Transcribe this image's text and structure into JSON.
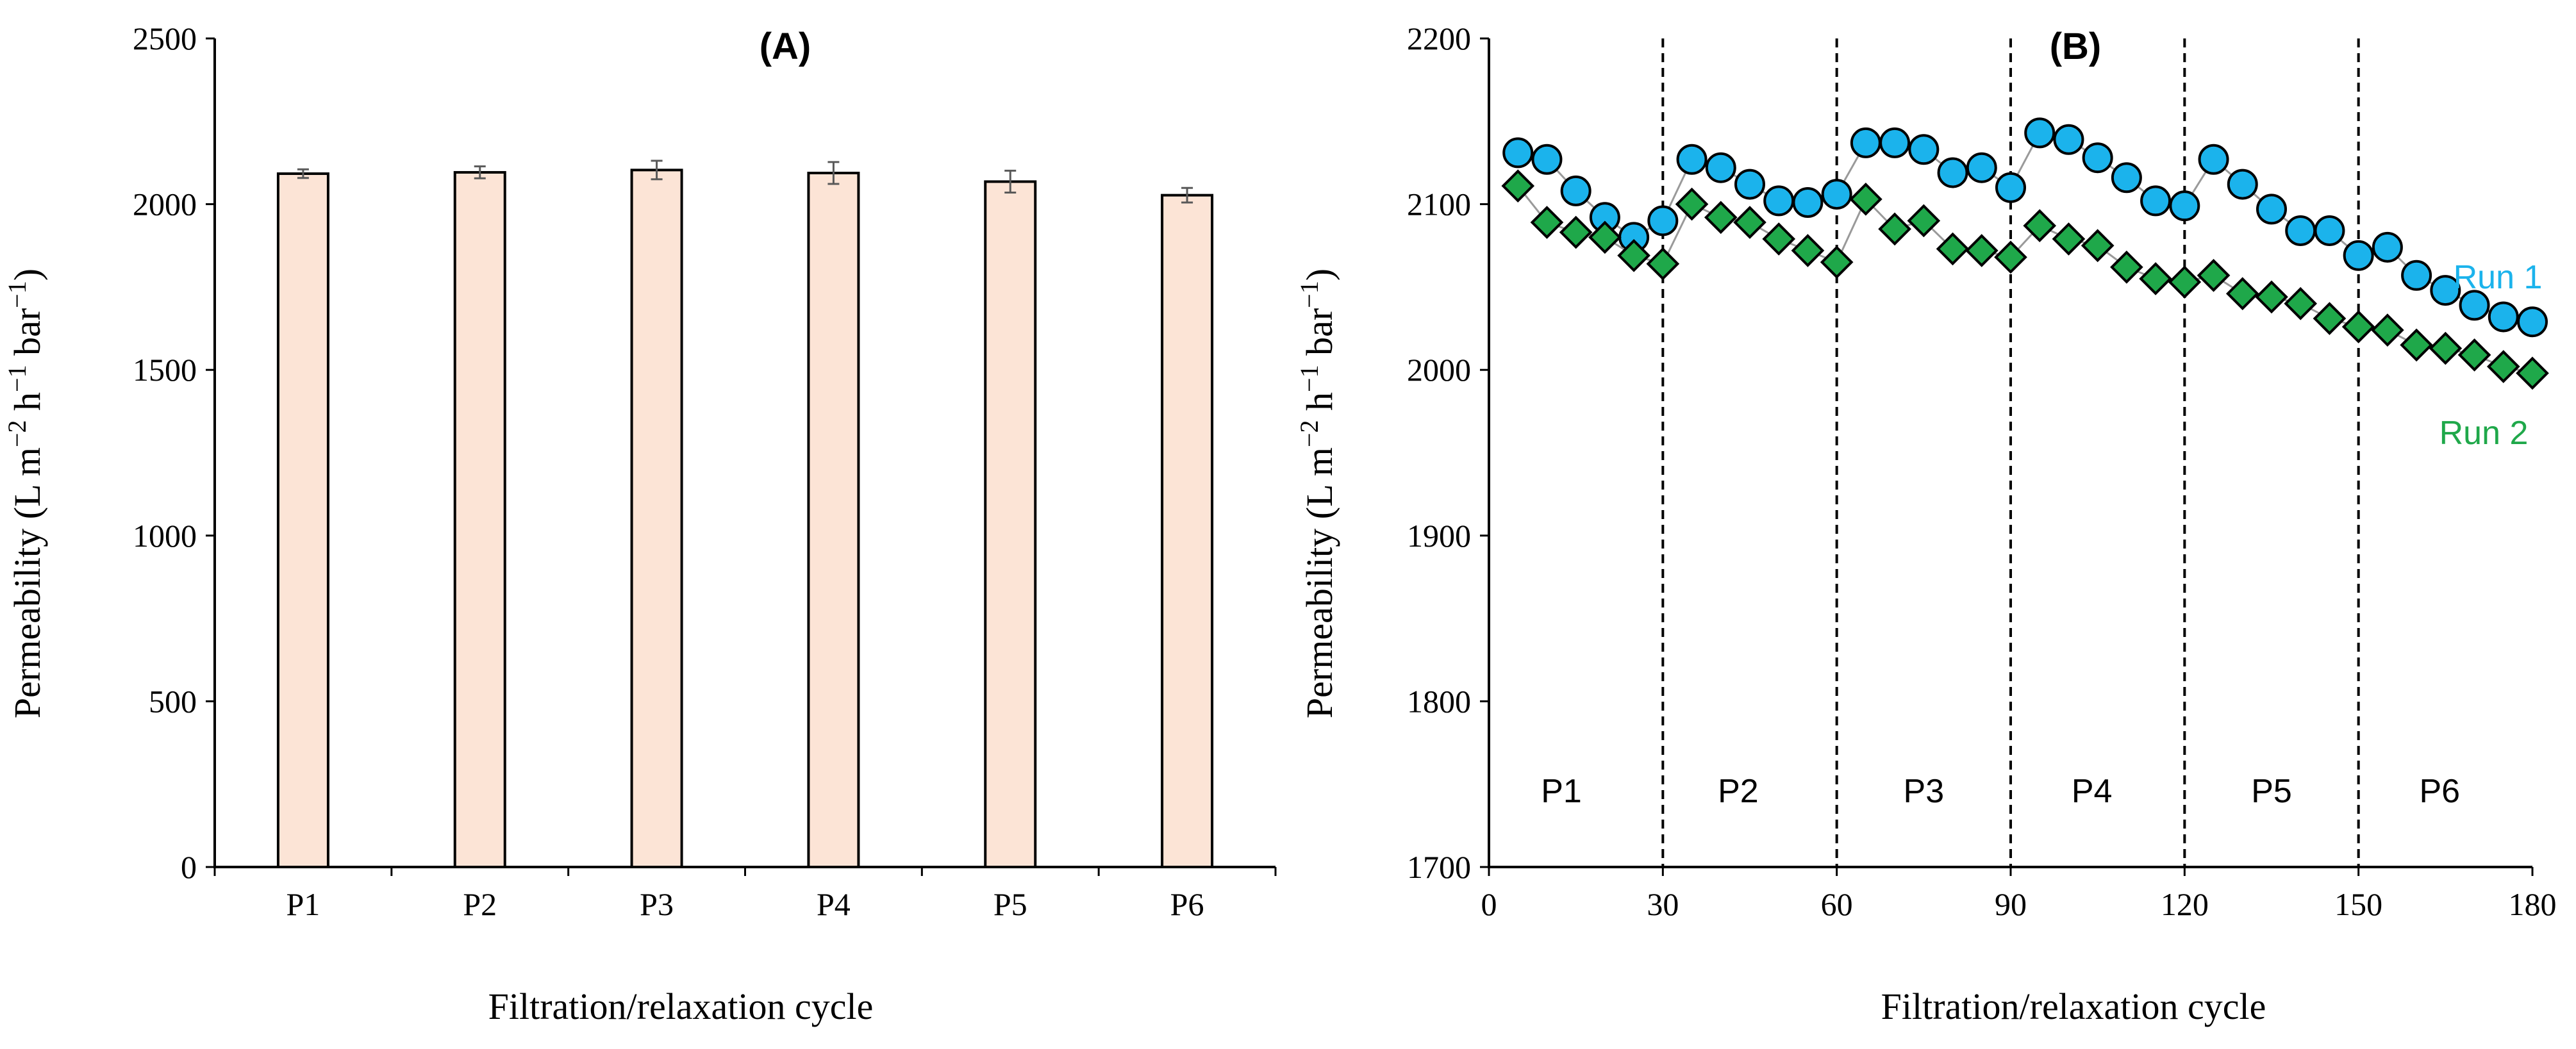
{
  "colors": {
    "bar_fill": "#FCE4D6",
    "run1": "#1BB3EC",
    "run2": "#1FA84A",
    "axis": "#000000"
  },
  "chart_data": [
    {
      "type": "bar",
      "title": "(A)",
      "xlabel": "Filtration/relaxation cycle",
      "ylabel": "Permeability (L m−2 h−1 bar−1)",
      "ylim": [
        0,
        2500
      ],
      "yticks": [
        0,
        500,
        1000,
        1500,
        2000,
        2500
      ],
      "categories": [
        "P1",
        "P2",
        "P3",
        "P4",
        "P5",
        "P6"
      ],
      "values": [
        2092,
        2096,
        2103,
        2094,
        2068,
        2027
      ],
      "errors": [
        13,
        18,
        28,
        33,
        33,
        22
      ],
      "grid": false
    },
    {
      "type": "scatter",
      "title": "(B)",
      "xlabel": "Filtration/relaxation cycle",
      "ylabel": "Permeability (L m−2 h−1 bar−1)",
      "xlim": [
        0,
        180
      ],
      "ylim": [
        1700,
        2200
      ],
      "xticks": [
        0,
        30,
        60,
        90,
        120,
        150,
        180
      ],
      "yticks": [
        1700,
        1800,
        1900,
        2000,
        2100,
        2200
      ],
      "dividers": [
        30,
        60,
        90,
        120,
        150
      ],
      "periods": [
        {
          "label": "P1",
          "x": 12.5
        },
        {
          "label": "P2",
          "x": 43
        },
        {
          "label": "P3",
          "x": 75
        },
        {
          "label": "P4",
          "x": 104
        },
        {
          "label": "P5",
          "x": 135
        },
        {
          "label": "P6",
          "x": 164
        }
      ],
      "series": [
        {
          "name": "Run 1",
          "marker": "circle",
          "x": [
            5,
            10,
            15,
            20,
            25,
            30,
            35,
            40,
            45,
            50,
            55,
            60,
            65,
            70,
            75,
            80,
            85,
            90,
            95,
            100,
            105,
            110,
            115,
            120,
            125,
            130,
            135,
            140,
            145,
            150,
            155,
            160,
            165,
            170,
            175,
            180
          ],
          "y": [
            2131,
            2127,
            2108,
            2092,
            2080,
            2090,
            2127,
            2122,
            2112,
            2102,
            2101,
            2106,
            2137,
            2137,
            2133,
            2119,
            2122,
            2110,
            2143,
            2139,
            2128,
            2116,
            2102,
            2099,
            2127,
            2112,
            2097,
            2084,
            2084,
            2069,
            2074,
            2057,
            2048,
            2039,
            2032,
            2029
          ]
        },
        {
          "name": "Run 2",
          "marker": "diamond",
          "x": [
            5,
            10,
            15,
            20,
            25,
            30,
            35,
            40,
            45,
            50,
            55,
            60,
            65,
            70,
            75,
            80,
            85,
            90,
            95,
            100,
            105,
            110,
            115,
            120,
            125,
            130,
            135,
            140,
            145,
            150,
            155,
            160,
            165,
            170,
            175,
            180
          ],
          "y": [
            2111,
            2089,
            2083,
            2080,
            2069,
            2064,
            2100,
            2092,
            2089,
            2079,
            2072,
            2065,
            2103,
            2085,
            2090,
            2073,
            2072,
            2068,
            2087,
            2079,
            2075,
            2062,
            2055,
            2053,
            2057,
            2046,
            2044,
            2040,
            2031,
            2026,
            2024,
            2015,
            2013,
            2009,
            2002,
            1998
          ]
        }
      ]
    }
  ]
}
